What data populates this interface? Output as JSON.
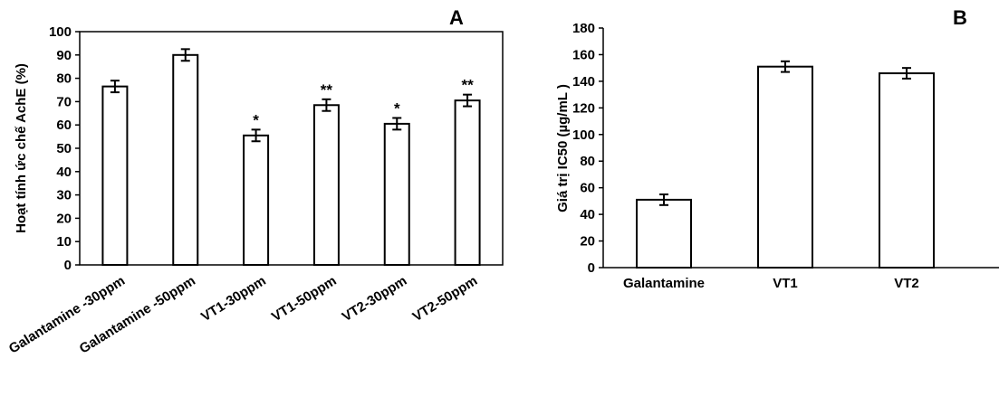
{
  "chart_data": [
    {
      "type": "bar",
      "panel_label": "A",
      "ylabel": "Hoạt tính ức chế AchE (%)",
      "xlabel": "",
      "categories": [
        "Galantamine -30ppm",
        "Galantamine -50ppm",
        "VT1-30ppm",
        "VT1-50ppm",
        "VT2-30ppm",
        "VT2-50ppm"
      ],
      "values": [
        76.5,
        90,
        55.5,
        68.5,
        60.5,
        70.5
      ],
      "errors": [
        2.5,
        2.5,
        2.5,
        2.5,
        2.5,
        2.5
      ],
      "annotations": [
        "",
        "",
        "*",
        "**",
        "*",
        "**"
      ],
      "ylim": [
        0,
        100
      ],
      "yticks": [
        "0",
        "10",
        "20",
        "30",
        "40",
        "50",
        "60",
        "70",
        "80",
        "90",
        "100"
      ],
      "grid": false,
      "bar_fill": "#ffffff",
      "bar_stroke": "#000000"
    },
    {
      "type": "bar",
      "panel_label": "B",
      "ylabel": "Giá trị IC50 (µg/mL )",
      "xlabel": "",
      "categories": [
        "Galantamine",
        "VT1",
        "VT2"
      ],
      "values": [
        51,
        151,
        146
      ],
      "errors": [
        4,
        4,
        4
      ],
      "ylim": [
        0,
        180
      ],
      "yticks": [
        "0",
        "20",
        "40",
        "60",
        "80",
        "100",
        "120",
        "140",
        "160",
        "180"
      ],
      "grid": false,
      "bar_fill": "#ffffff",
      "bar_stroke": "#000000"
    }
  ]
}
